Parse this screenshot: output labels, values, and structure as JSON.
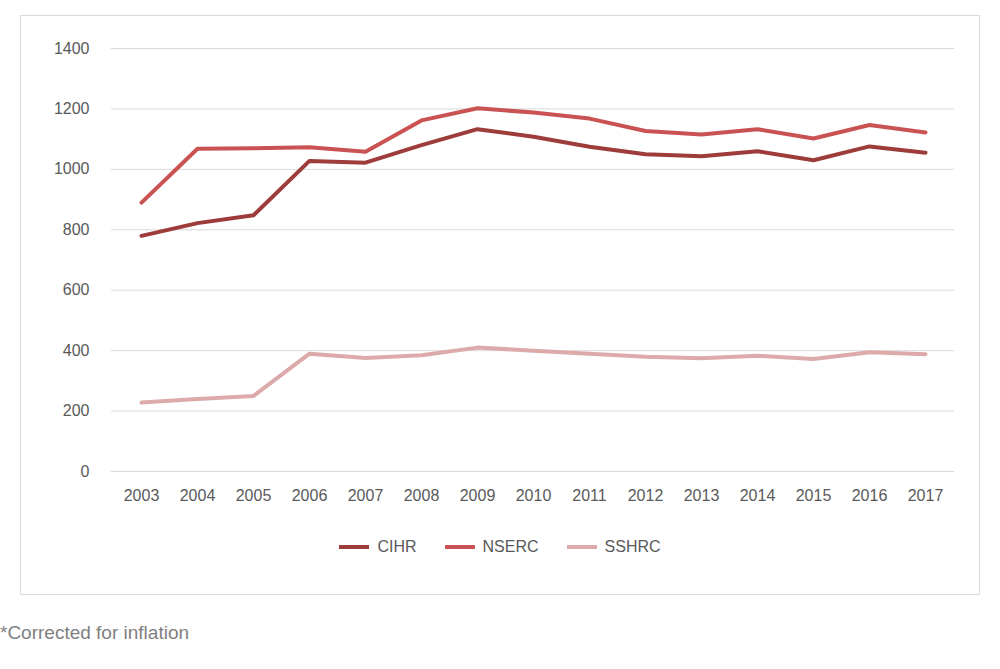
{
  "chart_data": {
    "type": "line",
    "categories": [
      "2003",
      "2004",
      "2005",
      "2006",
      "2007",
      "2008",
      "2009",
      "2010",
      "2011",
      "2012",
      "2013",
      "2014",
      "2015",
      "2016",
      "2017"
    ],
    "series": [
      {
        "name": "CIHR",
        "color": "#9e3b3b",
        "values": [
          780,
          822,
          848,
          1028,
          1022,
          1080,
          1133,
          1108,
          1075,
          1050,
          1043,
          1060,
          1030,
          1076,
          1055
        ]
      },
      {
        "name": "NSERC",
        "color": "#c95353",
        "values": [
          890,
          1068,
          1070,
          1073,
          1058,
          1162,
          1202,
          1188,
          1168,
          1127,
          1115,
          1133,
          1102,
          1147,
          1122
        ]
      },
      {
        "name": "SSHRC",
        "color": "#dcaaaa",
        "values": [
          228,
          240,
          250,
          390,
          376,
          385,
          410,
          400,
          390,
          380,
          375,
          383,
          372,
          395,
          388
        ]
      }
    ],
    "ylim": [
      0,
      1400
    ],
    "yticks": [
      0,
      200,
      400,
      600,
      800,
      1000,
      1200,
      1400
    ],
    "grid": true,
    "legend": "bottom",
    "caption": "*Corrected for inflation"
  }
}
